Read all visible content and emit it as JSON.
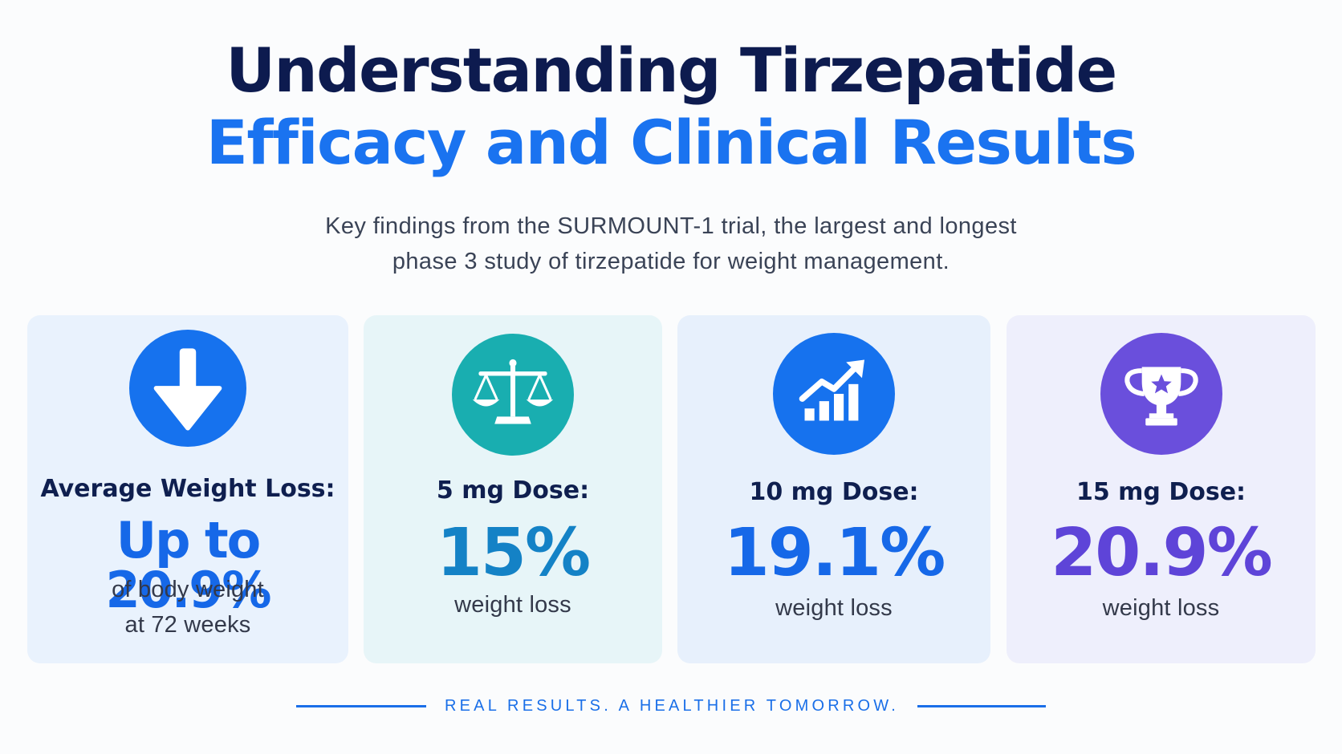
{
  "header": {
    "title_line1": "Understanding Tirzepatide",
    "title_line2": "Efficacy and Clinical Results",
    "subtitle_line1": "Key findings from the SURMOUNT-1 trial, the largest and longest",
    "subtitle_line2": "phase 3 study of tirzepatide for weight management."
  },
  "cards": [
    {
      "icon": "arrow-down-icon",
      "color": "#1672ee",
      "label": "Average Weight Loss:",
      "value": "Up to 20.9%",
      "desc_line1": "of body weight",
      "desc_line2": "at 72 weeks"
    },
    {
      "icon": "balance-scale-icon",
      "color": "#19aeb0",
      "label": "5 mg Dose:",
      "value": "15%",
      "desc_line1": "weight loss"
    },
    {
      "icon": "growth-chart-icon",
      "color": "#1672ee",
      "label": "10 mg Dose:",
      "value": "19.1%",
      "desc_line1": "weight loss"
    },
    {
      "icon": "trophy-icon",
      "color": "#6a4fdc",
      "label": "15 mg Dose:",
      "value": "20.9%",
      "desc_line1": "weight loss"
    }
  ],
  "footer": {
    "tagline": "REAL RESULTS. A HEALTHIER TOMORROW."
  }
}
